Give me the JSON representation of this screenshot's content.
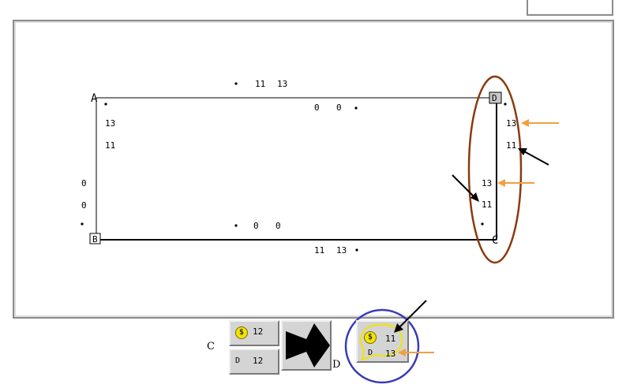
{
  "nodes": {
    "a": "A",
    "b": "B",
    "c": "C",
    "d": "D"
  },
  "edges": {
    "top_upper": [
      "11",
      "13"
    ],
    "top_lower": [
      "0",
      "0"
    ],
    "left_outer": [
      "0",
      "0"
    ],
    "left_inner": [
      "13",
      "11"
    ],
    "bottom_upper": [
      "0",
      "0"
    ],
    "bottom_lower": [
      "11",
      "13"
    ],
    "right_outer": [
      "13",
      "11"
    ],
    "right_inner": [
      "13",
      "11"
    ]
  },
  "controls": {
    "left_label": "C",
    "right_label": "D",
    "card_top_value": "12",
    "card_bottom_letter": "D",
    "card_bottom_value": "12",
    "target_card": {
      "value_top": "11",
      "letter": "D",
      "value_bottom": "13"
    },
    "coin_symbol": "$"
  },
  "colors": {
    "ellipse_brown": "#8b3a0e",
    "circle_blue": "#3a3ab8",
    "arrow_orange": "#f0a040",
    "speech_yellow": "#f2e400",
    "panel_border": "#8c8c8c"
  }
}
